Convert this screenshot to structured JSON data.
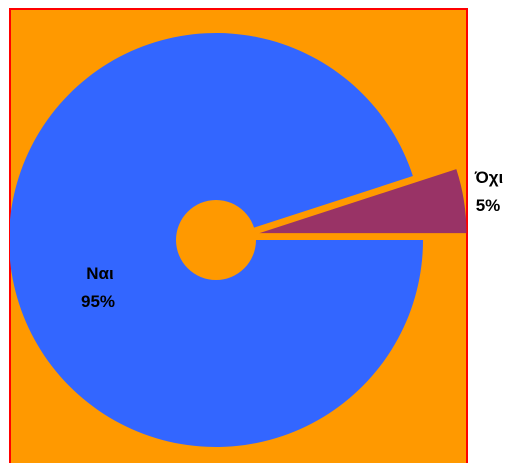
{
  "chart_data": {
    "type": "pie",
    "style": "exploded-doughnut",
    "title": "",
    "slices": [
      {
        "label": "Ναι",
        "value": 95,
        "value_label": "95%",
        "color": "#3366FF"
      },
      {
        "label": "Όχι",
        "value": 5,
        "value_label": "5%",
        "color": "#993366"
      }
    ],
    "start_angle_deg": 0,
    "direction": "counterclockwise-from-east-for-small-slice",
    "exploded_slice": "Όχι"
  },
  "colors": {
    "plot_background": "#FF9900",
    "plot_border": "#FF0000",
    "page_background": "#FFFFFF"
  }
}
